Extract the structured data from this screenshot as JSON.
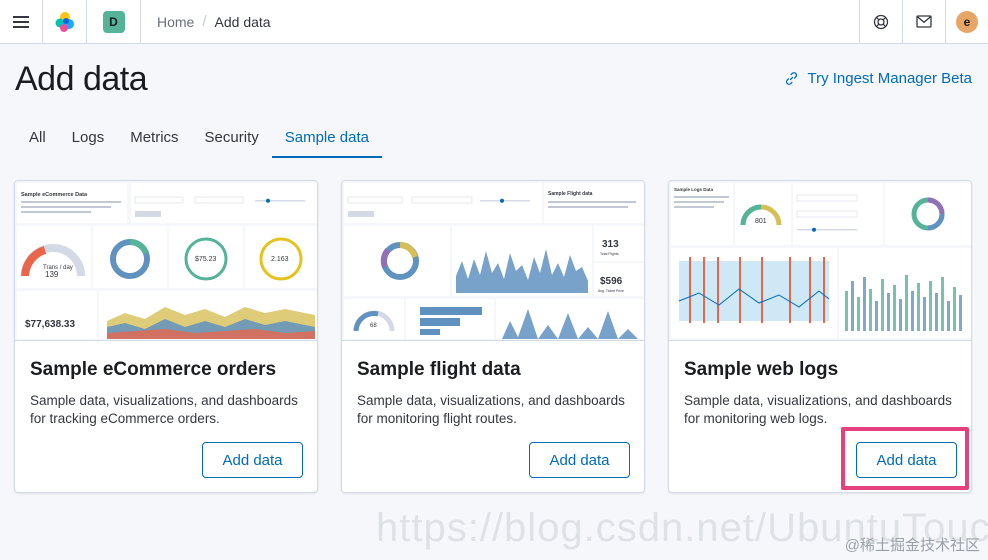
{
  "header": {
    "space_letter": "D",
    "breadcrumbs": [
      "Home",
      "Add data"
    ],
    "user_initial": "e",
    "icons": [
      "menu-icon",
      "elastic-logo-icon",
      "help-icon",
      "mail-icon"
    ]
  },
  "page": {
    "title": "Add data",
    "ingest_link": "Try Ingest Manager Beta"
  },
  "tabs": [
    {
      "label": "All",
      "selected": false
    },
    {
      "label": "Logs",
      "selected": false
    },
    {
      "label": "Metrics",
      "selected": false
    },
    {
      "label": "Security",
      "selected": false
    },
    {
      "label": "Sample data",
      "selected": true
    }
  ],
  "cards": [
    {
      "title": "Sample eCommerce orders",
      "description": "Sample data, visualizations, and dashboards for tracking eCommerce orders.",
      "button": "Add data",
      "thumb": {
        "heading": "Sample eCommerce Data",
        "gauge_value": "139",
        "gauge_label": "Trans / day",
        "metric_1": "$75.23",
        "metric_2": "2.163",
        "total": "$77,638.33"
      }
    },
    {
      "title": "Sample flight data",
      "description": "Sample data, visualizations, and dashboards for monitoring flight routes.",
      "button": "Add data",
      "thumb": {
        "heading": "Sample Flight data",
        "metric_1": "313",
        "metric_1_label": "Total Flights",
        "metric_2": "$596",
        "metric_2_label": "Avg. Ticket Price",
        "gauge_value": "68"
      }
    },
    {
      "title": "Sample web logs",
      "description": "Sample data, visualizations, and dashboards for monitoring web logs.",
      "button": "Add data",
      "thumb": {
        "heading": "Sample Logs Data",
        "gauge_value": "801"
      }
    }
  ],
  "watermark": {
    "url": "https://blog.csdn.net/UbuntuTouch",
    "site": "@稀土掘金技术社区"
  },
  "colors": {
    "accent": "#006bb8",
    "highlight": "#e4417d",
    "space_avatar": "#54b399",
    "user_avatar": "#e7a566"
  }
}
